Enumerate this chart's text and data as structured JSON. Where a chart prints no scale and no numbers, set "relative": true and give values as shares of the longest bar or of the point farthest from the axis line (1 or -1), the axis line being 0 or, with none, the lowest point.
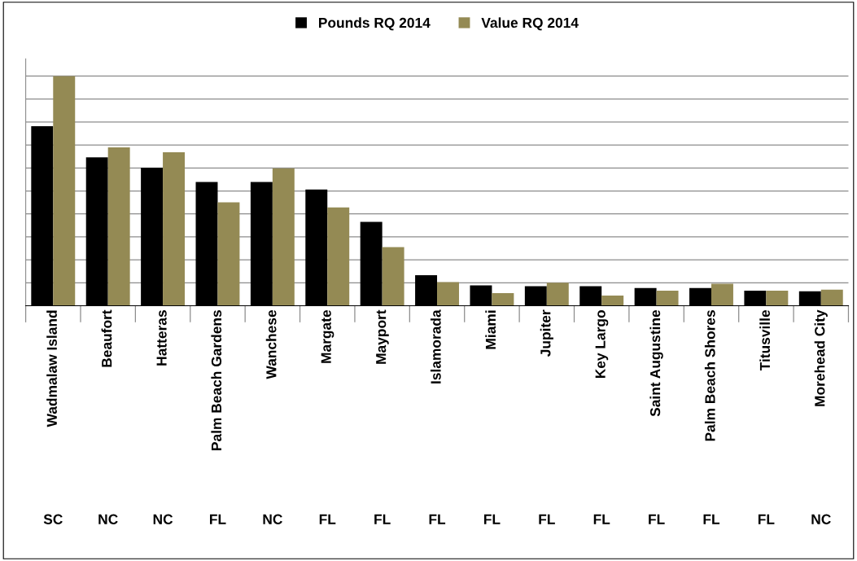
{
  "chart_data": {
    "type": "bar",
    "relative": true,
    "grid": "y",
    "legend": "top",
    "categories": [
      "Wadmalaw Island",
      "Beaufort",
      "Hatteras",
      "Palm Beach Gardens",
      "Wanchese",
      "Margate",
      "Mayport",
      "Islamorada",
      "Miami",
      "Jupiter",
      "Key Largo",
      "Saint Augustine",
      "Palm Beach Shores",
      "Titusville",
      "Morehead City"
    ],
    "series": [
      {
        "name": "Pounds RQ 2014",
        "color": "#000000",
        "values": [
          0.782,
          0.646,
          0.601,
          0.539,
          0.539,
          0.506,
          0.365,
          0.133,
          0.089,
          0.085,
          0.085,
          0.077,
          0.077,
          0.066,
          0.063
        ]
      },
      {
        "name": "Value RQ 2014",
        "color": "#948a54",
        "values": [
          1,
          0.69,
          0.668,
          0.45,
          0.598,
          0.428,
          0.255,
          0.103,
          0.055,
          0.1,
          0.044,
          0.066,
          0.096,
          0.066,
          0.07
        ]
      }
    ],
    "annotations": [
      "SC",
      "NC",
      "NC",
      "FL",
      "NC",
      "FL",
      "FL",
      "FL",
      "FL",
      "FL",
      "FL",
      "FL",
      "FL",
      "FL",
      "NC"
    ]
  }
}
